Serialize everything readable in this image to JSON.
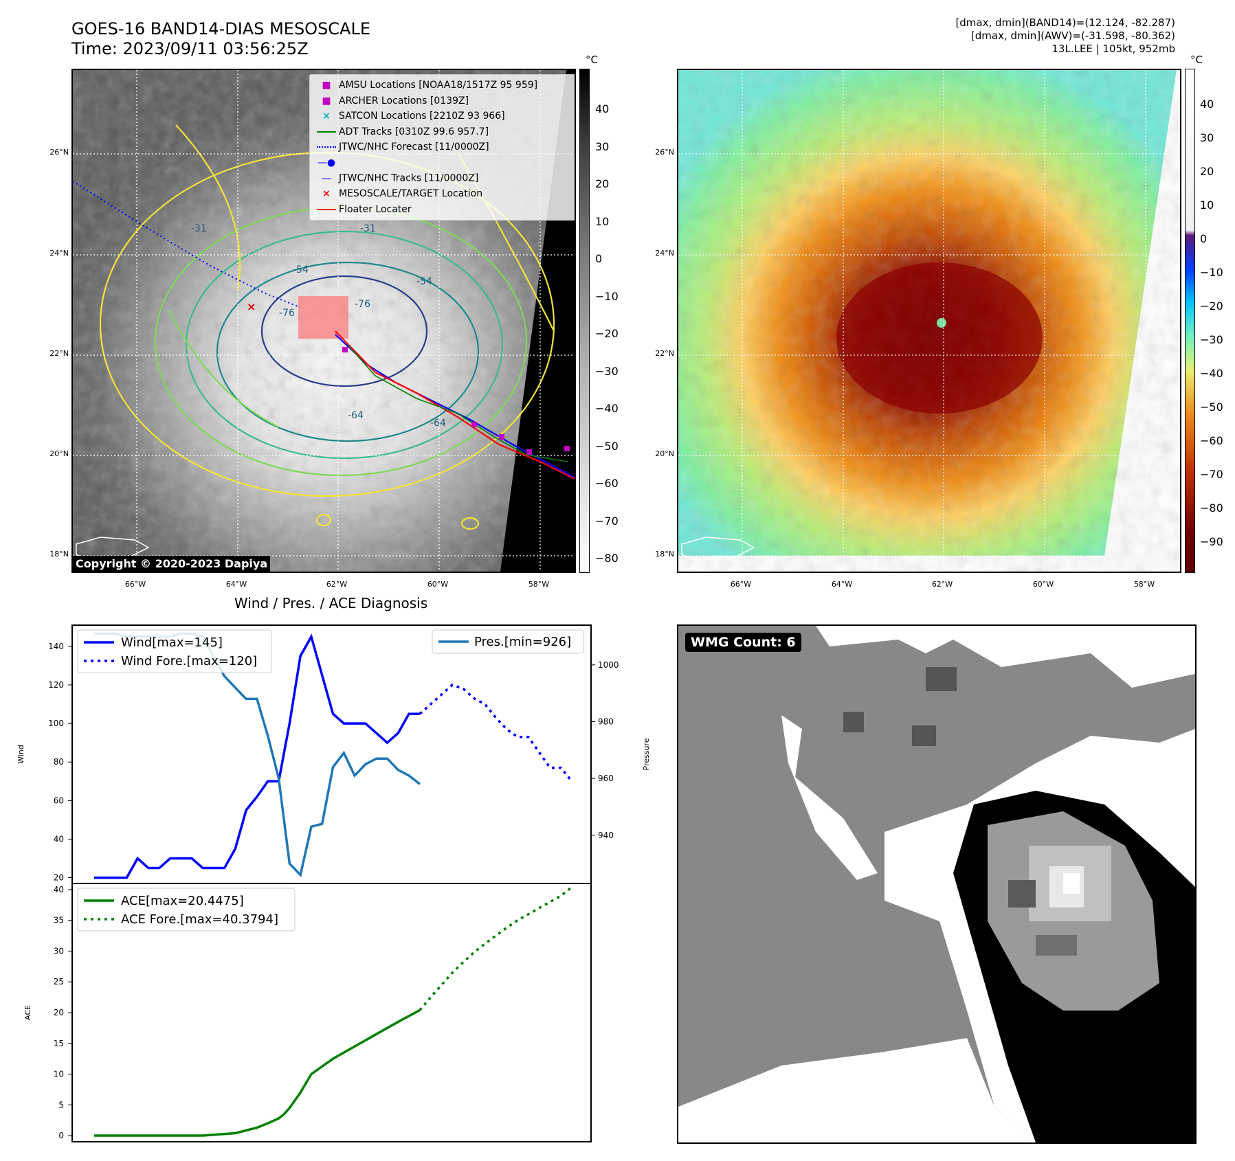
{
  "header": {
    "title_line1": "GOES-16 BAND14-DIAS MESOSCALE",
    "title_line2": "Time: 2023/09/11 03:56:25Z",
    "right_line1": "[dmax, dmin](BAND14)=(12.124, -82.287)",
    "right_line2": "[dmax, dmin](AWV)=(-31.598, -80.362)",
    "right_line3": "13L.LEE | 105kt, 952mb"
  },
  "map": {
    "lat_labels": [
      "26°N",
      "24°N",
      "22°N",
      "20°N",
      "18°N"
    ],
    "lon_labels": [
      "66°W",
      "64°W",
      "62°W",
      "60°W",
      "58°W"
    ],
    "copyright": "Copyright © 2020-2023 Dapiya",
    "contour_labels": [
      "-31",
      "-54",
      "-76",
      "-76",
      "-54",
      "-64",
      "-64",
      "-31"
    ],
    "legend": [
      {
        "label": "AMSU Locations [NOAA18/1517Z 95 959]",
        "color": "#c000c0",
        "marker": "square"
      },
      {
        "label": "ARCHER Locations [0139Z]",
        "color": "#c000c0",
        "marker": "square"
      },
      {
        "label": "SATCON Locations [2210Z 93 966]",
        "color": "#00c0c0",
        "marker": "x"
      },
      {
        "label": "ADT Tracks [0310Z 99.6 957.7]",
        "color": "#008000",
        "marker": "line"
      },
      {
        "label": "JTWC/NHC Forecast [11/0000Z]",
        "color": "#0000ff",
        "marker": "dotted"
      },
      {
        "label": "JTWC/NHC Tracks [11/0000Z]",
        "color": "#0000ff",
        "marker": "line-dot"
      },
      {
        "label": "MESOSCALE/TARGET Location",
        "color": "#ff0000",
        "marker": "x"
      },
      {
        "label": "Floater Locater",
        "color": "#ff0000",
        "marker": "line"
      }
    ]
  },
  "colorbar_left": {
    "unit": "°C",
    "ticks": [
      "40",
      "30",
      "20",
      "10",
      "0",
      "−10",
      "−20",
      "−30",
      "−40",
      "−50",
      "−60",
      "−70",
      "−80"
    ]
  },
  "colorbar_right": {
    "unit": "°C",
    "ticks": [
      "40",
      "30",
      "20",
      "10",
      "0",
      "−10",
      "−20",
      "−30",
      "−40",
      "−50",
      "−60",
      "−70",
      "−80",
      "−90"
    ]
  },
  "wmg": {
    "label": "WMG Count: 6"
  },
  "chart_data": [
    {
      "type": "line",
      "title": "Wind / Pres. / ACE Diagnosis",
      "ylabel": "Wind",
      "y2label": "Pressure",
      "ylim": [
        17,
        151
      ],
      "y2lim": [
        923,
        1014
      ],
      "yticks": [
        "20",
        "40",
        "60",
        "80",
        "100",
        "120",
        "140"
      ],
      "y2ticks": [
        "940",
        "960",
        "980",
        "1000"
      ],
      "series": [
        {
          "name": "Wind[max=145]",
          "color": "#0000ff",
          "style": "solid",
          "x": [
            0,
            2,
            3,
            4,
            5,
            6,
            7,
            8,
            9,
            10,
            11,
            12,
            13,
            14,
            15,
            16,
            17,
            18,
            19,
            20,
            21,
            22,
            23,
            24,
            25,
            26,
            27,
            28,
            29,
            30
          ],
          "values": [
            20,
            20,
            20,
            30,
            25,
            25,
            30,
            30,
            30,
            25,
            25,
            25,
            35,
            55,
            62,
            70,
            70,
            100,
            135,
            145,
            125,
            105,
            100,
            100,
            100,
            95,
            90,
            95,
            105,
            105
          ]
        },
        {
          "name": "Wind Fore.[max=120]",
          "color": "#0000ff",
          "style": "dotted",
          "x": [
            30,
            31,
            32,
            33,
            34,
            35,
            36,
            37,
            38,
            39,
            40,
            41,
            42,
            43,
            44
          ],
          "values": [
            105,
            110,
            115,
            120,
            118,
            113,
            110,
            103,
            97,
            93,
            93,
            85,
            77,
            77,
            70
          ]
        },
        {
          "name": "Pres.[min=926]",
          "color": "#1f77b4",
          "style": "solid",
          "axis": "right",
          "x": [
            0,
            1,
            2,
            3,
            4,
            5,
            6,
            7,
            8,
            9,
            10,
            11,
            12,
            13,
            14,
            15,
            16,
            17,
            18,
            19,
            20,
            21,
            22,
            23,
            24,
            25,
            26,
            27,
            28,
            29,
            30
          ],
          "values": [
            1011,
            1011,
            1011,
            1010,
            1010,
            1010,
            1010,
            1010,
            1011,
            1011,
            1010,
            1003,
            996,
            992,
            988,
            988,
            975,
            960,
            930,
            926,
            943,
            944,
            964,
            969,
            961,
            965,
            967,
            967,
            963,
            961,
            958
          ]
        }
      ]
    },
    {
      "type": "line",
      "ylabel": "ACE",
      "ylim": [
        -1,
        41
      ],
      "yticks": [
        "0",
        "5",
        "10",
        "15",
        "20",
        "25",
        "30",
        "35",
        "40"
      ],
      "series": [
        {
          "name": "ACE[max=20.4475]",
          "color": "#008000",
          "style": "solid",
          "x": [
            0,
            10,
            13,
            15,
            16,
            17,
            17.5,
            18,
            19,
            20,
            22,
            24,
            26,
            28,
            30
          ],
          "values": [
            0,
            0,
            0.4,
            1.3,
            2,
            2.8,
            3.5,
            4.5,
            7,
            10,
            12.5,
            14.5,
            16.5,
            18.5,
            20.4
          ]
        },
        {
          "name": "ACE Fore.[max=40.3794]",
          "color": "#008000",
          "style": "dotted",
          "x": [
            30,
            31,
            32,
            33,
            34,
            35,
            36,
            37,
            38,
            39,
            40,
            41,
            42,
            43,
            44
          ],
          "values": [
            20.4,
            22.5,
            24.5,
            26.5,
            28.2,
            29.8,
            31.2,
            32.5,
            33.8,
            35,
            36,
            37,
            38,
            39,
            40.4
          ]
        }
      ]
    }
  ]
}
